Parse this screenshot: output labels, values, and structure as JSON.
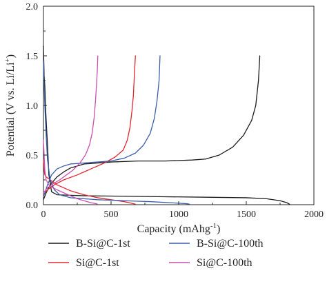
{
  "chart_data": {
    "type": "line",
    "title": "",
    "xlabel": "Capacity (mAhg",
    "xlabel_superscript": "-1",
    "xlabel_suffix": ")",
    "ylabel": "Potential (V vs. Li/Li",
    "ylabel_superscript": "+",
    "ylabel_suffix": ")",
    "xlim": [
      0,
      2000
    ],
    "ylim": [
      0,
      2.0
    ],
    "xticks": [
      "0",
      "500",
      "1000",
      "1500",
      "2000"
    ],
    "yticks": [
      "0.0",
      "0.5",
      "1.0",
      "1.5",
      "2.0"
    ],
    "grid": false,
    "legend_position": "bottom",
    "series": [
      {
        "name": "B-Si@C-1st",
        "color": "#1a1a1a",
        "segments": [
          {
            "x": [
              0,
              5,
              10,
              15,
              20,
              30,
              40,
              60,
              100,
              300,
              600,
              900,
              1200,
              1500,
              1650,
              1750,
              1800,
              1820
            ],
            "y": [
              1.6,
              1.3,
              1.2,
              1.0,
              0.85,
              0.6,
              0.3,
              0.13,
              0.1,
              0.09,
              0.085,
              0.08,
              0.075,
              0.07,
              0.06,
              0.04,
              0.02,
              0.005
            ]
          },
          {
            "x": [
              0,
              20,
              50,
              100,
              150,
              200,
              300,
              500,
              700,
              900,
              1100,
              1200,
              1300,
              1400,
              1480,
              1540,
              1570,
              1590,
              1600
            ],
            "y": [
              0.05,
              0.12,
              0.2,
              0.28,
              0.33,
              0.37,
              0.41,
              0.43,
              0.44,
              0.44,
              0.45,
              0.46,
              0.5,
              0.58,
              0.7,
              0.85,
              1.0,
              1.25,
              1.5
            ]
          }
        ]
      },
      {
        "name": "Si@C-1st",
        "color": "#e0262f",
        "segments": [
          {
            "x": [
              0,
              5,
              10,
              20,
              30,
              50,
              100,
              200,
              300,
              400,
              500,
              600,
              650,
              680
            ],
            "y": [
              0.45,
              0.35,
              0.3,
              0.28,
              0.27,
              0.25,
              0.2,
              0.14,
              0.1,
              0.07,
              0.05,
              0.03,
              0.015,
              0.005
            ]
          },
          {
            "x": [
              0,
              30,
              80,
              150,
              250,
              350,
              450,
              530,
              590,
              620,
              640,
              655,
              665,
              672,
              680
            ],
            "y": [
              0.1,
              0.15,
              0.2,
              0.25,
              0.3,
              0.36,
              0.42,
              0.48,
              0.55,
              0.65,
              0.78,
              0.95,
              1.1,
              1.3,
              1.5
            ]
          }
        ]
      },
      {
        "name": "B-Si@C-100th",
        "color": "#3a5fa8",
        "segments": [
          {
            "x": [
              0,
              5,
              10,
              20,
              30,
              50,
              80,
              120,
              200,
              400,
              600,
              800,
              1000,
              1060,
              1080
            ],
            "y": [
              1.45,
              1.2,
              1.0,
              0.7,
              0.45,
              0.25,
              0.15,
              0.1,
              0.07,
              0.05,
              0.04,
              0.03,
              0.015,
              0.01,
              0.005
            ]
          },
          {
            "x": [
              0,
              30,
              60,
              100,
              150,
              200,
              300,
              400,
              500,
              600,
              680,
              740,
              790,
              820,
              840,
              855,
              862
            ],
            "y": [
              0.08,
              0.2,
              0.3,
              0.36,
              0.39,
              0.41,
              0.42,
              0.43,
              0.44,
              0.47,
              0.52,
              0.6,
              0.72,
              0.87,
              1.05,
              1.25,
              1.5
            ]
          }
        ]
      },
      {
        "name": "Si@C-100th",
        "color": "#c94fb0",
        "segments": [
          {
            "x": [
              0,
              5,
              10,
              20,
              40,
              70,
              100,
              150,
              200,
              250,
              300,
              350,
              390,
              400
            ],
            "y": [
              0.65,
              0.5,
              0.35,
              0.25,
              0.2,
              0.17,
              0.15,
              0.12,
              0.09,
              0.06,
              0.04,
              0.02,
              0.01,
              0.005
            ]
          },
          {
            "x": [
              0,
              30,
              70,
              120,
              170,
              220,
              270,
              310,
              340,
              360,
              375,
              385,
              392,
              398,
              402
            ],
            "y": [
              0.12,
              0.17,
              0.21,
              0.25,
              0.3,
              0.35,
              0.42,
              0.5,
              0.6,
              0.72,
              0.88,
              1.05,
              1.2,
              1.35,
              1.5
            ]
          }
        ]
      }
    ]
  }
}
